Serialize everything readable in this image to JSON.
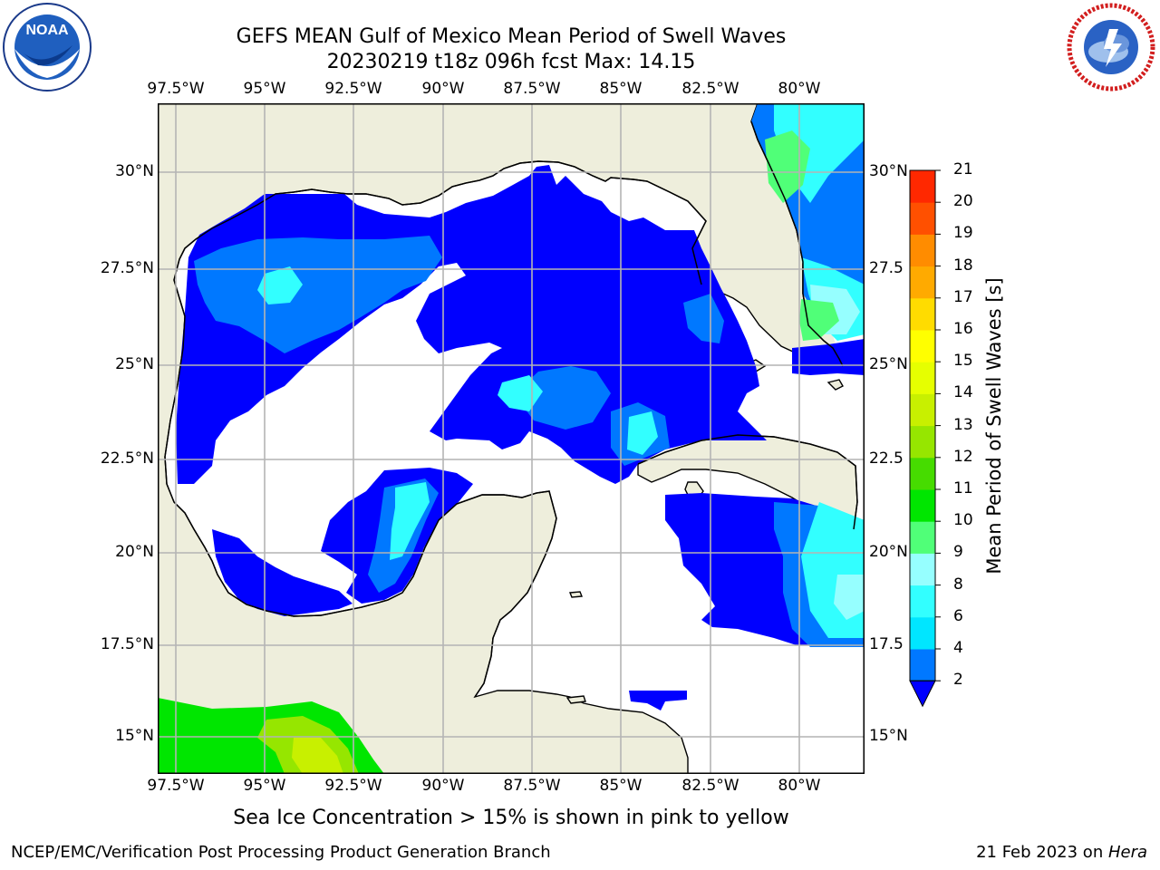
{
  "header": {
    "title": "GEFS MEAN Gulf of Mexico Mean Period of Swell Waves",
    "subtitle": "20230219 t18z 096h fcst   Max: 14.15"
  },
  "logos": {
    "left": {
      "icon": "noaa-logo",
      "text": "NOAA"
    },
    "right": {
      "icon": "national-weather-service-logo",
      "text": "NATIONAL WEATHER SERVICE"
    }
  },
  "map": {
    "lon_labels": [
      "97.5°W",
      "95°W",
      "92.5°W",
      "90°W",
      "87.5°W",
      "85°W",
      "82.5°W",
      "80°W"
    ],
    "lat_labels_left": [
      "30°N",
      "27.5°N",
      "25°N",
      "22.5°N",
      "20°N",
      "17.5°N",
      "15°N"
    ],
    "lat_labels_right": [
      "30°N",
      "27.5",
      "25°N",
      "22.5",
      "20°N",
      "17.5",
      "15°N"
    ],
    "colors": {
      "land": "#eeeedc",
      "ocean": "#ffffff",
      "grid": "#b4b4b4"
    }
  },
  "colorbar": {
    "title": "Mean Period of Swell Waves [s]",
    "levels": [
      "2",
      "4",
      "6",
      "8",
      "9",
      "10",
      "11",
      "12",
      "13",
      "14",
      "15",
      "16",
      "17",
      "18",
      "19",
      "20",
      "21"
    ],
    "colors": [
      "#0078ff",
      "#00e6ff",
      "#32ffff",
      "#96ffff",
      "#50ff78",
      "#00e600",
      "#46dc00",
      "#96e600",
      "#c8f000",
      "#e6ff00",
      "#ffff00",
      "#ffdc00",
      "#ffaa00",
      "#ff8c00",
      "#ff5000",
      "#ff2800",
      "#ff0000"
    ],
    "extend_color": "#0000ff"
  },
  "note": "Sea Ice Concentration > 15% is shown in pink to yellow",
  "footer": {
    "left": "NCEP/EMC/Verification Post Processing Product Generation Branch",
    "right_date": "21 Feb 2023 on ",
    "right_host": "Hera"
  }
}
